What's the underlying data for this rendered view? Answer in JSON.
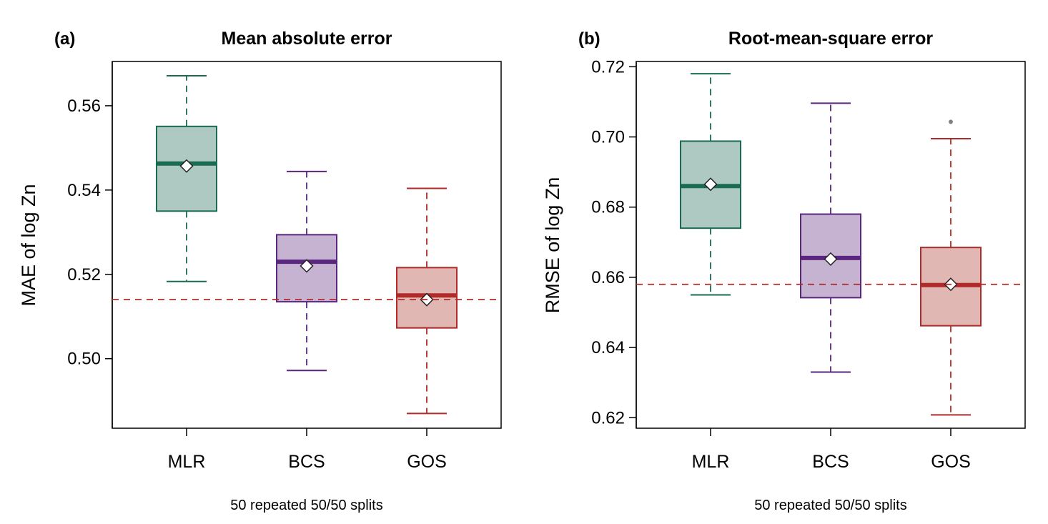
{
  "chart_data": [
    {
      "type": "box",
      "panel_label": "(a)",
      "title": "Mean absolute error",
      "xlabel": "50 repeated 50/50 splits",
      "ylabel": "MAE of log Zn",
      "ylim": [
        0.4835,
        0.5705
      ],
      "yticks": [
        0.5,
        0.52,
        0.54,
        0.56
      ],
      "ytick_labels": [
        "0.50",
        "0.52",
        "0.54",
        "0.56"
      ],
      "reference_line": 0.514,
      "categories": [
        "MLR",
        "BCS",
        "GOS"
      ],
      "boxes": [
        {
          "name": "MLR",
          "whisker_low": 0.5183,
          "q1": 0.535,
          "median": 0.5463,
          "q3": 0.5551,
          "whisker_high": 0.5671,
          "mean": 0.5457,
          "outliers": [],
          "color": "#1a6b52",
          "fill": "#adc9c1"
        },
        {
          "name": "BCS",
          "whisker_low": 0.4972,
          "q1": 0.5135,
          "median": 0.523,
          "q3": 0.5294,
          "whisker_high": 0.5444,
          "mean": 0.522,
          "outliers": [],
          "color": "#5a2680",
          "fill": "#c5b3d1"
        },
        {
          "name": "GOS",
          "whisker_low": 0.487,
          "q1": 0.5073,
          "median": 0.515,
          "q3": 0.5216,
          "whisker_high": 0.5404,
          "mean": 0.514,
          "outliers": [],
          "color": "#b02a2a",
          "fill": "#e0b7b3"
        }
      ]
    },
    {
      "type": "box",
      "panel_label": "(b)",
      "title": "Root-mean-square error",
      "xlabel": "50 repeated 50/50 splits",
      "ylabel": "RMSE of log Zn",
      "ylim": [
        0.617,
        0.7215
      ],
      "yticks": [
        0.62,
        0.64,
        0.66,
        0.68,
        0.7,
        0.72
      ],
      "ytick_labels": [
        "0.62",
        "0.64",
        "0.66",
        "0.68",
        "0.70",
        "0.72"
      ],
      "reference_line": 0.658,
      "categories": [
        "MLR",
        "BCS",
        "GOS"
      ],
      "boxes": [
        {
          "name": "MLR",
          "whisker_low": 0.655,
          "q1": 0.674,
          "median": 0.686,
          "q3": 0.6988,
          "whisker_high": 0.718,
          "mean": 0.6865,
          "outliers": [],
          "color": "#1a6b52",
          "fill": "#adc9c1"
        },
        {
          "name": "BCS",
          "whisker_low": 0.633,
          "q1": 0.6542,
          "median": 0.6655,
          "q3": 0.678,
          "whisker_high": 0.7096,
          "mean": 0.6652,
          "outliers": [],
          "color": "#5a2680",
          "fill": "#c5b3d1"
        },
        {
          "name": "GOS",
          "whisker_low": 0.6208,
          "q1": 0.6462,
          "median": 0.6578,
          "q3": 0.6685,
          "whisker_high": 0.6995,
          "mean": 0.658,
          "outliers": [
            0.7043
          ],
          "color": "#b02a2a",
          "fill": "#e0b7b3"
        }
      ]
    }
  ],
  "colors": {
    "reference_line": "#b02a2a",
    "outlier": "#808080",
    "mean_marker_fill": "#ffffff",
    "axis": "#000000"
  }
}
